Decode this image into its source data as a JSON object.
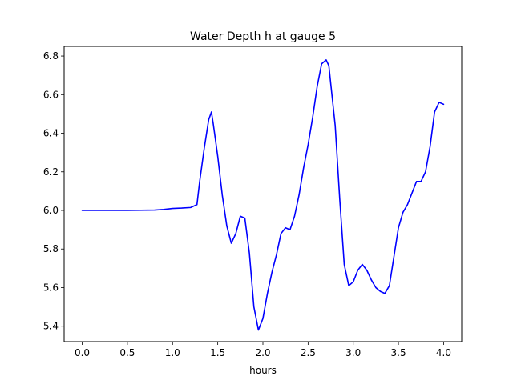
{
  "chart_data": {
    "type": "line",
    "title": "Water Depth h at gauge 5",
    "xlabel": "hours",
    "ylabel": "",
    "xlim": [
      -0.2,
      4.2
    ],
    "ylim": [
      5.32,
      6.85
    ],
    "xticks": [
      0.0,
      0.5,
      1.0,
      1.5,
      2.0,
      2.5,
      3.0,
      3.5,
      4.0
    ],
    "xtick_labels": [
      "0.0",
      "0.5",
      "1.0",
      "1.5",
      "2.0",
      "2.5",
      "3.0",
      "3.5",
      "4.0"
    ],
    "yticks": [
      5.4,
      5.6,
      5.8,
      6.0,
      6.2,
      6.4,
      6.6,
      6.8
    ],
    "ytick_labels": [
      "5.4",
      "5.6",
      "5.8",
      "6.0",
      "6.2",
      "6.4",
      "6.6",
      "6.8"
    ],
    "grid": false,
    "series": [
      {
        "color": "#0000ff",
        "x": [
          0.0,
          0.5,
          0.8,
          0.9,
          1.0,
          1.1,
          1.2,
          1.27,
          1.3,
          1.35,
          1.4,
          1.43,
          1.45,
          1.5,
          1.55,
          1.6,
          1.65,
          1.7,
          1.75,
          1.8,
          1.85,
          1.9,
          1.95,
          2.0,
          2.05,
          2.1,
          2.15,
          2.2,
          2.25,
          2.3,
          2.35,
          2.4,
          2.45,
          2.5,
          2.55,
          2.6,
          2.65,
          2.7,
          2.73,
          2.75,
          2.8,
          2.85,
          2.9,
          2.95,
          3.0,
          3.05,
          3.1,
          3.15,
          3.2,
          3.25,
          3.3,
          3.35,
          3.4,
          3.45,
          3.5,
          3.55,
          3.6,
          3.65,
          3.7,
          3.75,
          3.8,
          3.85,
          3.9,
          3.95,
          4.0
        ],
        "y": [
          6.0,
          6.0,
          6.002,
          6.005,
          6.01,
          6.012,
          6.015,
          6.03,
          6.15,
          6.32,
          6.47,
          6.51,
          6.45,
          6.28,
          6.08,
          5.92,
          5.83,
          5.88,
          5.97,
          5.96,
          5.78,
          5.5,
          5.38,
          5.44,
          5.57,
          5.68,
          5.77,
          5.88,
          5.91,
          5.9,
          5.97,
          6.08,
          6.22,
          6.34,
          6.48,
          6.64,
          6.76,
          6.78,
          6.75,
          6.66,
          6.44,
          6.06,
          5.72,
          5.61,
          5.63,
          5.69,
          5.72,
          5.69,
          5.64,
          5.6,
          5.58,
          5.57,
          5.61,
          5.76,
          5.91,
          5.99,
          6.03,
          6.09,
          6.15,
          6.15,
          6.2,
          6.33,
          6.51,
          6.56,
          6.55
        ]
      }
    ]
  }
}
